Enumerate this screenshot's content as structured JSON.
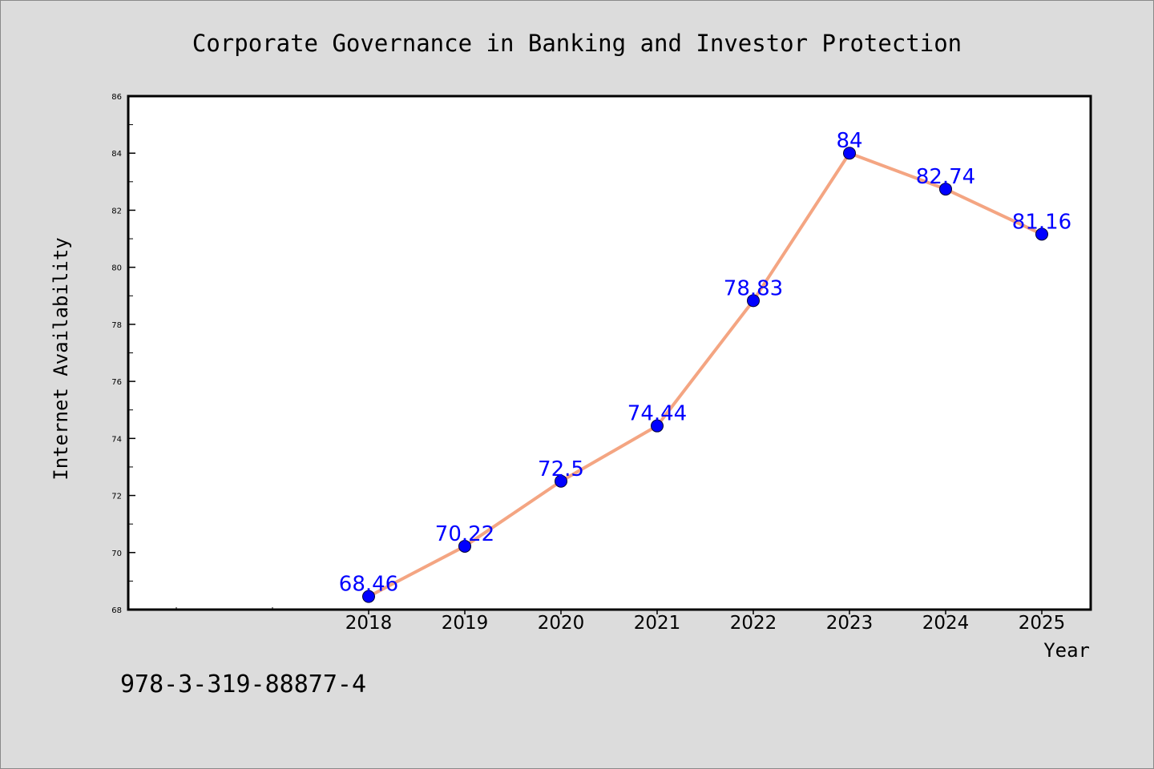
{
  "chart_data": {
    "type": "line",
    "title": "Corporate Governance in Banking and Investor Protection",
    "xlabel": "Year",
    "ylabel": "Internet Availability",
    "x": [
      "2018",
      "2019",
      "2020",
      "2021",
      "2022",
      "2023",
      "2024",
      "2025"
    ],
    "series": [
      {
        "values": [
          68.46,
          70.22,
          72.5,
          74.44,
          78.83,
          84,
          82.74,
          81.16
        ],
        "data_labels": [
          "68.46",
          "70.22",
          "72.5",
          "74.44",
          "78.83",
          "84",
          "82.74",
          "81.16"
        ]
      }
    ],
    "ylim": [
      68,
      86
    ],
    "yticks": [
      68,
      70,
      72,
      74,
      76,
      78,
      80,
      82,
      84,
      86
    ],
    "ytick_labels": [
      "68",
      "70",
      "72",
      "74",
      "76",
      "78",
      "80",
      "82",
      "84",
      "86"
    ],
    "grid": false,
    "legend": "none"
  },
  "annotation": "978-3-319-88877-4",
  "colors": {
    "background": "#dcdcdc",
    "plot_area": "#ffffff",
    "line": "#f4a582",
    "marker": "#0000ff",
    "data_label": "#0000ff"
  }
}
